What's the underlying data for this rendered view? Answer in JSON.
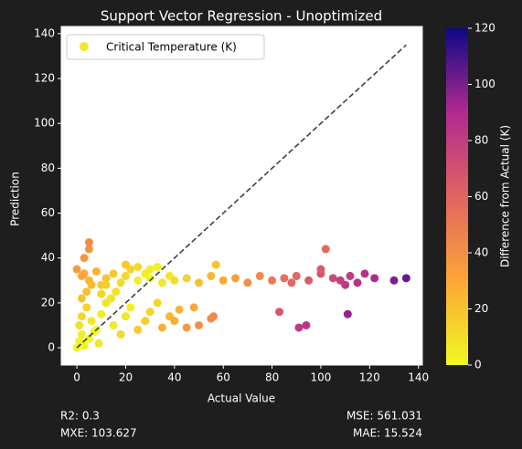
{
  "chart_data": {
    "type": "scatter",
    "title": "Support Vector Regression - Unoptimized",
    "xlabel": "Actual Value",
    "ylabel": "Prediction",
    "xlim": [
      -6.4,
      141.6
    ],
    "xticks": [
      0,
      20,
      40,
      60,
      80,
      100,
      120,
      140
    ],
    "ylim": [
      -7.7,
      143.2
    ],
    "yticks": [
      0,
      20,
      40,
      60,
      80,
      100,
      120,
      140
    ],
    "legend": "upper left",
    "series": [
      {
        "name": "Critical Temperature (K)",
        "color": "#f3e52a",
        "x": [
          2,
          5,
          8,
          10,
          12,
          15,
          18,
          20,
          22,
          25,
          28,
          30,
          33,
          35,
          38,
          40,
          45,
          50,
          55,
          57,
          60,
          65,
          70,
          75,
          80,
          85,
          88,
          90,
          95,
          100,
          102,
          100,
          105,
          108,
          110,
          112,
          115,
          118,
          122,
          130,
          135,
          83,
          91,
          94,
          111,
          5,
          5,
          3,
          2,
          4,
          6,
          8,
          10,
          12,
          15,
          18,
          20,
          22,
          25,
          28,
          30,
          33,
          35,
          38,
          40,
          42,
          45,
          48,
          50,
          55,
          56,
          0,
          1,
          2,
          3,
          5,
          7,
          9,
          4,
          6,
          10,
          14,
          25,
          30,
          20,
          16,
          12,
          1,
          2,
          0,
          3
        ],
        "values": [
          32,
          30,
          34,
          28,
          31,
          33,
          29,
          32,
          35,
          30,
          33,
          31,
          36,
          29,
          32,
          30,
          31,
          29,
          32,
          37,
          30,
          31,
          29,
          32,
          30,
          31,
          29,
          32,
          30,
          33,
          44,
          35,
          31,
          30,
          28,
          32,
          29,
          33,
          31,
          30,
          31,
          16,
          9,
          10,
          15,
          44,
          47,
          40,
          22,
          18,
          12,
          8,
          15,
          20,
          10,
          6,
          14,
          18,
          8,
          12,
          16,
          20,
          9,
          14,
          12,
          17,
          9,
          18,
          10,
          13,
          14,
          0,
          3,
          6,
          1,
          4,
          7,
          2,
          25,
          28,
          24,
          22,
          36,
          35,
          37,
          25,
          28,
          10,
          14,
          35,
          33
        ]
      }
    ],
    "diagonal": {
      "x": [
        0,
        135
      ],
      "y": [
        0,
        135
      ]
    },
    "colorbar": {
      "label": "Difference from Actual (K)",
      "lim": [
        0,
        120
      ],
      "ticks": [
        0,
        20,
        40,
        60,
        80,
        100,
        120
      ],
      "colormap": [
        "#f0f921",
        "#fca636",
        "#e16462",
        "#b12a90",
        "#0d0887"
      ]
    },
    "annotations": {
      "r2": "R2: 0.3",
      "mse": "MSE: 561.031",
      "mxe": "MXE: 103.627",
      "mae": "MAE: 15.524"
    }
  }
}
